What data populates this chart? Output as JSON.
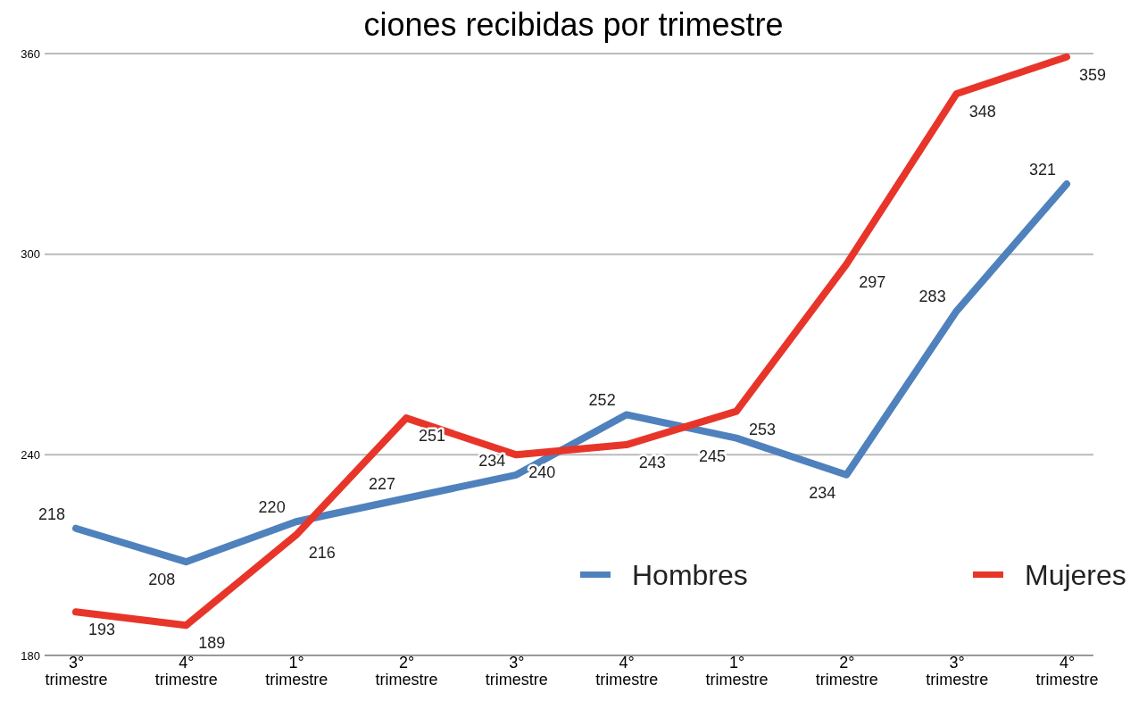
{
  "chart_data": {
    "type": "line",
    "title": "ciones recibidas por trimestre",
    "categories": [
      "3° trimestre",
      "4° trimestre",
      "1° trimestre",
      "2° trimestre",
      "3° trimestre",
      "4° trimestre",
      "1° trimestre",
      "2° trimestre",
      "3° trimestre",
      "4° trimestre"
    ],
    "series": [
      {
        "name": "Hombres",
        "color": "#4f81bd",
        "values": [
          218,
          208,
          220,
          227,
          234,
          252,
          245,
          234,
          283,
          321
        ]
      },
      {
        "name": "Mujeres",
        "color": "#e8352a",
        "values": [
          193,
          189,
          216,
          251,
          240,
          243,
          253,
          297,
          348,
          359
        ]
      }
    ],
    "ylim": [
      180,
      360
    ],
    "yticks": [
      180,
      240,
      300,
      360
    ],
    "grid": "y",
    "legend": "bottom right",
    "data_labels": true,
    "marker": "none",
    "line_style": "solid"
  }
}
